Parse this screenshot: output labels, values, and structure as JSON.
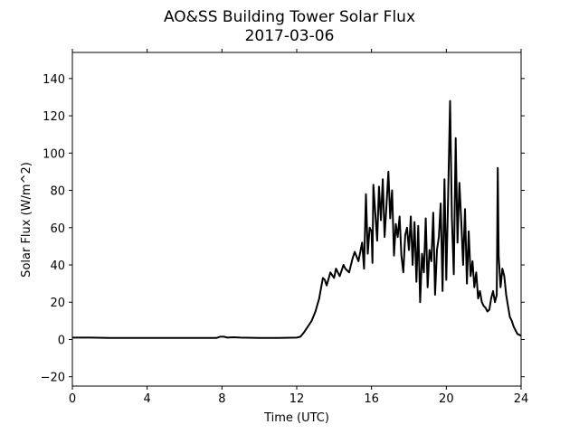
{
  "chart_data": {
    "type": "line",
    "title": "AO&SS Building Tower Solar Flux",
    "subtitle": "2017-03-06",
    "xlabel": "Time (UTC)",
    "ylabel": "Solar Flux (W/m^2)",
    "xlim": [
      0,
      24
    ],
    "ylim": [
      -25,
      154
    ],
    "xticks": [
      0,
      4,
      8,
      12,
      16,
      20,
      24
    ],
    "yticks": [
      -20,
      0,
      20,
      40,
      60,
      80,
      100,
      120,
      140
    ],
    "grid": false,
    "legend": "none",
    "line_color": "#000000",
    "series": [
      {
        "x": [
          0,
          1,
          2,
          3,
          4,
          5,
          6,
          7,
          7.7,
          7.9,
          8.1,
          8.3,
          8.6,
          9,
          10,
          11,
          12,
          12.2,
          12.4,
          12.6,
          12.8,
          13,
          13.2,
          13.4,
          13.5,
          13.6,
          13.8,
          14.0,
          14.1,
          14.3,
          14.5,
          14.6,
          14.8,
          15.0,
          15.1,
          15.3,
          15.5,
          15.6,
          15.7,
          15.8,
          15.9,
          16.0,
          16.05,
          16.1,
          16.2,
          16.3,
          16.4,
          16.5,
          16.6,
          16.7,
          16.8,
          16.9,
          17.0,
          17.1,
          17.2,
          17.3,
          17.4,
          17.5,
          17.6,
          17.7,
          17.8,
          17.9,
          18.0,
          18.1,
          18.2,
          18.3,
          18.4,
          18.5,
          18.6,
          18.7,
          18.8,
          18.9,
          19.0,
          19.1,
          19.2,
          19.3,
          19.4,
          19.5,
          19.6,
          19.7,
          19.8,
          19.9,
          20.0,
          20.1,
          20.2,
          20.3,
          20.4,
          20.5,
          20.6,
          20.7,
          20.8,
          20.9,
          21.0,
          21.1,
          21.2,
          21.3,
          21.4,
          21.5,
          21.6,
          21.7,
          21.8,
          21.9,
          22.0,
          22.1,
          22.2,
          22.3,
          22.4,
          22.5,
          22.6,
          22.7,
          22.75,
          22.8,
          22.9,
          23.0,
          23.1,
          23.2,
          23.3,
          23.4,
          23.5,
          23.6,
          23.7,
          23.8,
          24.0
        ],
        "y": [
          1,
          1,
          0.8,
          0.8,
          0.8,
          0.8,
          0.8,
          0.8,
          0.8,
          1.5,
          1.5,
          1,
          1.2,
          1,
          0.8,
          0.8,
          1,
          1.5,
          4,
          7,
          10,
          15,
          22,
          33,
          32,
          29,
          36,
          33,
          38,
          34,
          40,
          38,
          36,
          44,
          47,
          42,
          52,
          38,
          78,
          46,
          60,
          58,
          41,
          83,
          68,
          53,
          82,
          64,
          86,
          55,
          72,
          90,
          65,
          80,
          45,
          62,
          55,
          66,
          45,
          36,
          56,
          60,
          48,
          66,
          40,
          63,
          31,
          61,
          20,
          46,
          36,
          65,
          28,
          48,
          42,
          68,
          24,
          48,
          55,
          73,
          26,
          86,
          32,
          78,
          128,
          65,
          35,
          108,
          52,
          84,
          63,
          40,
          70,
          30,
          58,
          34,
          42,
          28,
          36,
          22,
          26,
          20,
          18,
          17,
          15,
          16,
          22,
          26,
          20,
          24,
          92,
          45,
          28,
          38,
          34,
          24,
          18,
          12,
          10,
          7,
          5,
          3,
          2
        ]
      }
    ]
  }
}
